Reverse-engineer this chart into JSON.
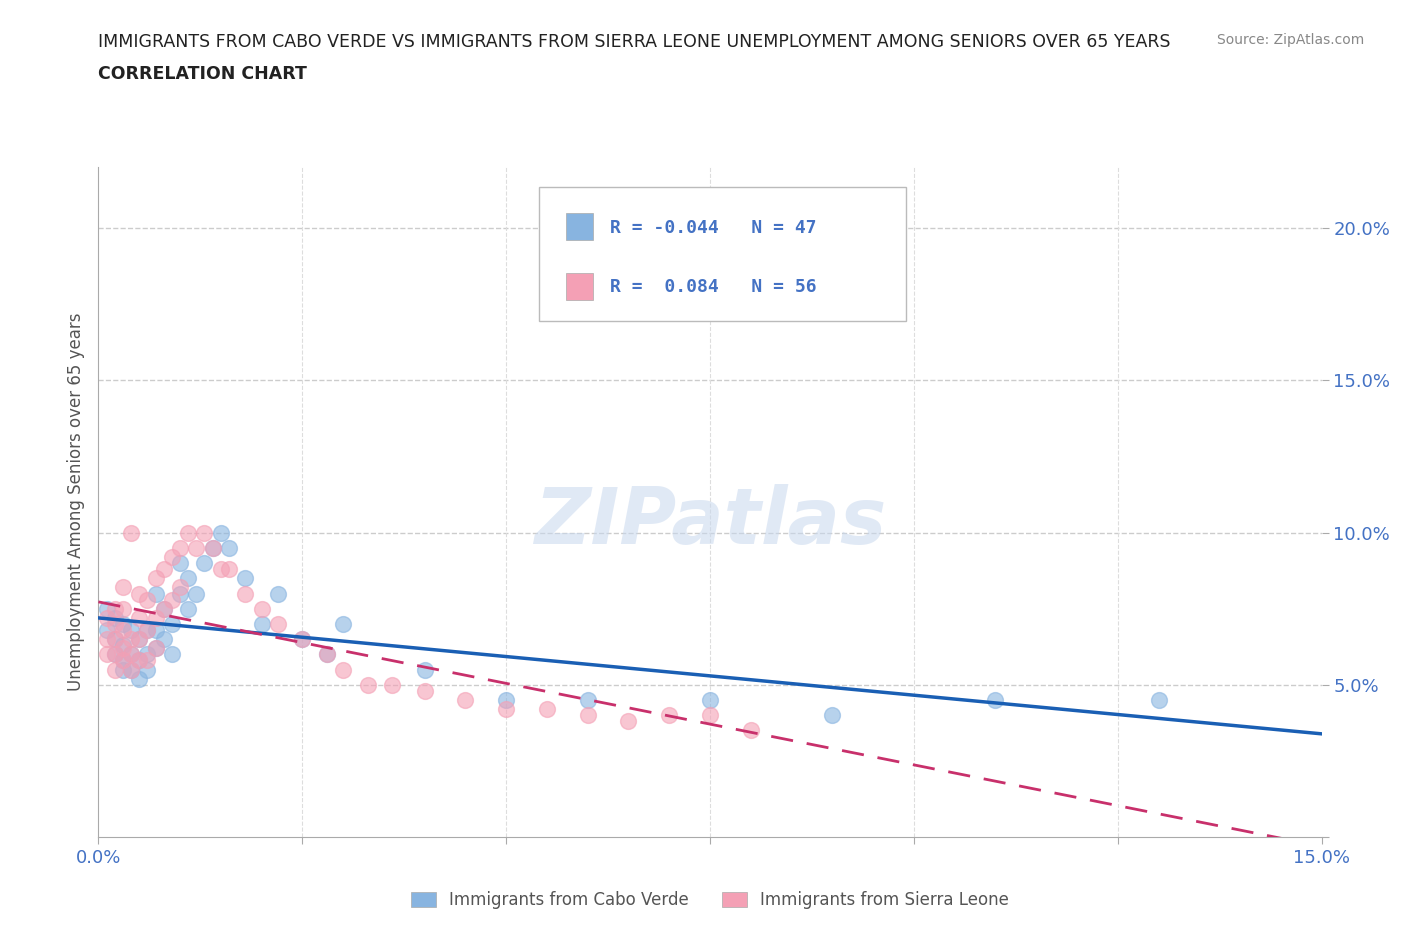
{
  "title_line1": "IMMIGRANTS FROM CABO VERDE VS IMMIGRANTS FROM SIERRA LEONE UNEMPLOYMENT AMONG SENIORS OVER 65 YEARS",
  "title_line2": "CORRELATION CHART",
  "source": "Source: ZipAtlas.com",
  "ylabel_label": "Unemployment Among Seniors over 65 years",
  "xlim": [
    0.0,
    0.15
  ],
  "ylim": [
    0.0,
    0.22
  ],
  "cabo_verde_R": -0.044,
  "cabo_verde_N": 47,
  "sierra_leone_R": 0.084,
  "sierra_leone_N": 56,
  "cabo_verde_color": "#88b4e0",
  "sierra_leone_color": "#f4a0b5",
  "cabo_verde_line_color": "#1a5fb4",
  "sierra_leone_line_color": "#c8306b",
  "watermark": "ZIPatlas",
  "cabo_verde_x": [
    0.001,
    0.001,
    0.002,
    0.002,
    0.002,
    0.003,
    0.003,
    0.003,
    0.003,
    0.004,
    0.004,
    0.004,
    0.005,
    0.005,
    0.005,
    0.006,
    0.006,
    0.006,
    0.007,
    0.007,
    0.007,
    0.008,
    0.008,
    0.009,
    0.009,
    0.01,
    0.01,
    0.011,
    0.011,
    0.012,
    0.013,
    0.014,
    0.015,
    0.016,
    0.018,
    0.02,
    0.022,
    0.025,
    0.028,
    0.03,
    0.04,
    0.05,
    0.06,
    0.075,
    0.09,
    0.11,
    0.13
  ],
  "cabo_verde_y": [
    0.075,
    0.068,
    0.072,
    0.065,
    0.06,
    0.07,
    0.063,
    0.058,
    0.055,
    0.068,
    0.06,
    0.055,
    0.065,
    0.058,
    0.052,
    0.068,
    0.06,
    0.055,
    0.08,
    0.068,
    0.062,
    0.075,
    0.065,
    0.07,
    0.06,
    0.09,
    0.08,
    0.085,
    0.075,
    0.08,
    0.09,
    0.095,
    0.1,
    0.095,
    0.085,
    0.07,
    0.08,
    0.065,
    0.06,
    0.07,
    0.055,
    0.045,
    0.045,
    0.045,
    0.04,
    0.045,
    0.045
  ],
  "sierra_leone_x": [
    0.001,
    0.001,
    0.001,
    0.002,
    0.002,
    0.002,
    0.002,
    0.002,
    0.003,
    0.003,
    0.003,
    0.003,
    0.003,
    0.004,
    0.004,
    0.004,
    0.004,
    0.005,
    0.005,
    0.005,
    0.005,
    0.006,
    0.006,
    0.006,
    0.007,
    0.007,
    0.007,
    0.008,
    0.008,
    0.009,
    0.009,
    0.01,
    0.01,
    0.011,
    0.012,
    0.013,
    0.014,
    0.015,
    0.016,
    0.018,
    0.02,
    0.022,
    0.025,
    0.028,
    0.03,
    0.033,
    0.036,
    0.04,
    0.045,
    0.05,
    0.055,
    0.06,
    0.065,
    0.07,
    0.075,
    0.08
  ],
  "sierra_leone_y": [
    0.065,
    0.06,
    0.072,
    0.075,
    0.07,
    0.065,
    0.06,
    0.055,
    0.082,
    0.075,
    0.068,
    0.062,
    0.058,
    0.1,
    0.065,
    0.06,
    0.055,
    0.08,
    0.072,
    0.065,
    0.058,
    0.078,
    0.068,
    0.058,
    0.085,
    0.072,
    0.062,
    0.088,
    0.075,
    0.092,
    0.078,
    0.095,
    0.082,
    0.1,
    0.095,
    0.1,
    0.095,
    0.088,
    0.088,
    0.08,
    0.075,
    0.07,
    0.065,
    0.06,
    0.055,
    0.05,
    0.05,
    0.048,
    0.045,
    0.042,
    0.042,
    0.04,
    0.038,
    0.04,
    0.04,
    0.035
  ]
}
